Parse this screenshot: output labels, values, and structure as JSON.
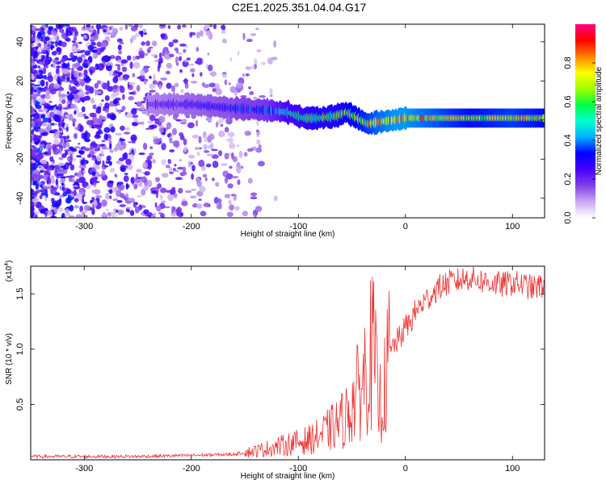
{
  "title": "C2E1.2025.351.04.04.G17",
  "chart_data": [
    {
      "type": "heatmap",
      "title": "C2E1.2025.351.04.04.G17",
      "xlabel": "Height of straight line (km)",
      "ylabel": "Frequency (Hz)",
      "xlim": [
        -350,
        130
      ],
      "ylim": [
        -50,
        49
      ],
      "x_ticks": [
        -300,
        -200,
        -100,
        0,
        100
      ],
      "x_tick_labels": [
        "-300",
        "-200",
        "-100",
        "0",
        "100"
      ],
      "y_ticks": [
        -40,
        -20,
        0,
        20,
        40
      ],
      "y_tick_labels": [
        "-40",
        "-20",
        "0",
        "20",
        "40"
      ],
      "colorbar": {
        "label": "Normalized spectral amplitude",
        "range": [
          0,
          1
        ],
        "ticks": [
          0.0,
          0.2,
          0.4,
          0.6,
          0.8
        ],
        "tick_labels": [
          "0.0",
          "0.2",
          "0.4",
          "0.6",
          "0.8"
        ],
        "colors": [
          "#ffffff",
          "#c8a8f0",
          "#8040e8",
          "#4800ff",
          "#0000ff",
          "#00b0ff",
          "#00ffd0",
          "#00ff40",
          "#a0ff00",
          "#ffff00",
          "#ff8000",
          "#ff0000",
          "#ff0080"
        ]
      },
      "ridge": {
        "x": [
          -240,
          -200,
          -160,
          -130,
          -110,
          -95,
          -80,
          -65,
          -55,
          -45,
          -35,
          -25,
          -10,
          0,
          20,
          60,
          100,
          130
        ],
        "freq": [
          8,
          8,
          6,
          5,
          4,
          1,
          1,
          2,
          4,
          1,
          -2,
          -1,
          0,
          1,
          1,
          1,
          1,
          1
        ],
        "amplitude": [
          0.25,
          0.3,
          0.35,
          0.4,
          0.55,
          0.6,
          0.65,
          0.65,
          0.7,
          0.75,
          0.8,
          0.85,
          0.9,
          0.9,
          0.85,
          0.75,
          0.8,
          0.75
        ]
      }
    },
    {
      "type": "line",
      "xlabel": "Height of straight line (km)",
      "ylabel": "SNR (10 * v/v)",
      "y_multiplier": "(x10",
      "y_multiplier_exp": "4",
      "y_multiplier_close": ")",
      "xlim": [
        -350,
        130
      ],
      "ylim": [
        0,
        1.75
      ],
      "x_ticks": [
        -300,
        -200,
        -100,
        0,
        100
      ],
      "x_tick_labels": [
        "-300",
        "-200",
        "-100",
        "0",
        "100"
      ],
      "y_ticks": [
        0.5,
        1.0,
        1.5
      ],
      "y_tick_labels": [
        "0.5",
        "1.0",
        "1.5"
      ],
      "series": [
        {
          "name": "SNR",
          "color": "#ee3333",
          "x": [
            -350,
            -300,
            -250,
            -200,
            -160,
            -140,
            -120,
            -100,
            -90,
            -80,
            -70,
            -60,
            -55,
            -50,
            -45,
            -40,
            -35,
            -30,
            -25,
            -20,
            -15,
            -10,
            -5,
            0,
            5,
            10,
            15,
            20,
            25,
            30,
            40,
            50,
            60,
            70,
            80,
            90,
            100,
            110,
            120,
            130
          ],
          "y": [
            0.03,
            0.03,
            0.03,
            0.04,
            0.05,
            0.08,
            0.12,
            0.16,
            0.18,
            0.22,
            0.28,
            0.35,
            0.4,
            0.5,
            0.6,
            0.7,
            0.9,
            1.0,
            0.5,
            0.6,
            0.95,
            1.05,
            1.1,
            1.2,
            1.25,
            1.35,
            1.4,
            1.45,
            1.5,
            1.55,
            1.6,
            1.62,
            1.65,
            1.62,
            1.6,
            1.58,
            1.6,
            1.58,
            1.55,
            1.58
          ]
        }
      ]
    }
  ]
}
